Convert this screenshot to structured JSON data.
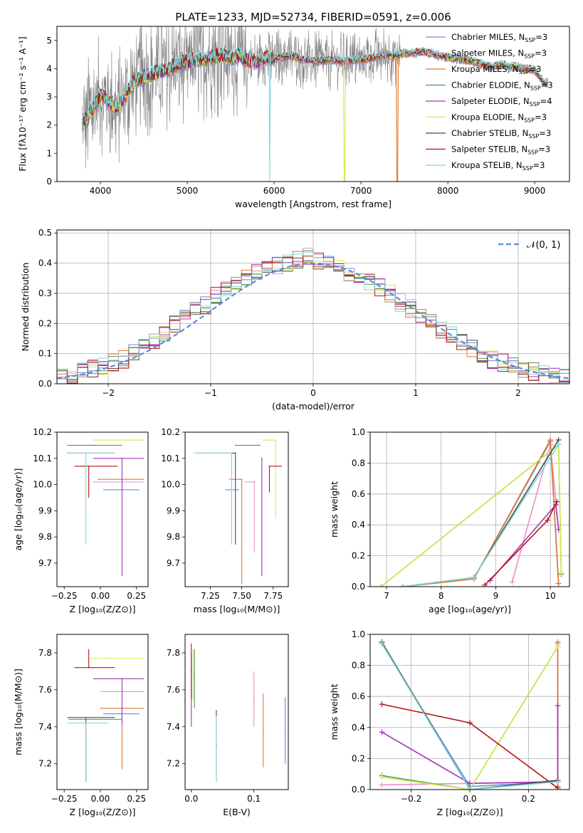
{
  "figure_title": "PLATE=1233, MJD=52734, FIBERID=0591, z=0.006",
  "colors": {
    "Chabrier MILES": "#6a8fd8",
    "Salpeter MILES": "#ea8fc8",
    "Kroupa MILES": "#e0782c",
    "Chabrier ELODIE": "#4f9a4f",
    "Salpeter ELODIE": "#a335b8",
    "Kroupa ELODIE": "#d4ea4a",
    "Chabrier STELIB": "#4a4a4a",
    "Salpeter STELIB": "#b81414",
    "Kroupa STELIB": "#7fd8dc"
  },
  "chart_data": [
    {
      "type": "line",
      "title": "PLATE=1233, MJD=52734, FIBERID=0591, z=0.006",
      "xlabel": "wavelength [Angstrom, rest frame]",
      "ylabel": "Flux [fλ10⁻¹⁷ erg cm⁻² s⁻¹ A⁻¹]",
      "xlim": [
        3500,
        9400
      ],
      "ylim": [
        0,
        5.5
      ],
      "xticks": [
        "4000",
        "5000",
        "6000",
        "7000",
        "8000",
        "9000"
      ],
      "yticks": [
        "0",
        "1",
        "2",
        "3",
        "4",
        "5"
      ],
      "grid": false,
      "legend_placement": "top-right",
      "continuum_x": [
        3790,
        3900,
        4000,
        4100,
        4200,
        4300,
        4400,
        4500,
        4600,
        4700,
        4800,
        4900,
        5000,
        5100,
        5200,
        5300,
        5400,
        5500,
        5600,
        5700,
        5800,
        5900,
        6000,
        6100,
        6200,
        6300,
        6400,
        6500,
        6600,
        6700,
        6800,
        6900,
        7000,
        7100,
        7200,
        7300,
        7400,
        7500,
        7600,
        7700,
        7800,
        7900,
        8000,
        8100,
        8200,
        8300,
        8400,
        8500,
        8600,
        8700,
        8800,
        8900,
        9000,
        9100
      ],
      "continuum_y": [
        2.0,
        2.5,
        3.1,
        2.8,
        2.6,
        3.1,
        3.6,
        3.7,
        3.8,
        3.9,
        4.0,
        4.15,
        4.25,
        4.3,
        4.35,
        4.4,
        4.45,
        4.4,
        4.45,
        4.3,
        4.25,
        4.35,
        4.35,
        4.4,
        4.45,
        4.35,
        4.3,
        4.25,
        4.3,
        4.3,
        4.25,
        4.3,
        4.3,
        4.35,
        4.45,
        4.45,
        4.45,
        4.55,
        4.55,
        4.6,
        4.55,
        4.45,
        4.4,
        4.35,
        4.3,
        4.25,
        4.15,
        4.05,
        4.15,
        4.1,
        4.05,
        4.0,
        3.95,
        3.5
      ],
      "series": [
        {
          "name": "Chabrier MILES, N",
          "sub": "SSP",
          "suffix": "=3"
        },
        {
          "name": "Salpeter MILES, N",
          "sub": "SSP",
          "suffix": "=3"
        },
        {
          "name": "Kroupa MILES, N",
          "sub": "SSP",
          "suffix": "=3"
        },
        {
          "name": "Chabrier ELODIE, N",
          "sub": "SSP",
          "suffix": "=3"
        },
        {
          "name": "Salpeter ELODIE, N",
          "sub": "SSP",
          "suffix": "=4"
        },
        {
          "name": "Kroupa ELODIE, N",
          "sub": "SSP",
          "suffix": "=3"
        },
        {
          "name": "Chabrier STELIB, N",
          "sub": "SSP",
          "suffix": "=3"
        },
        {
          "name": "Salpeter STELIB, N",
          "sub": "SSP",
          "suffix": "=3"
        },
        {
          "name": "Kroupa STELIB, N",
          "sub": "SSP",
          "suffix": "=3"
        }
      ]
    },
    {
      "type": "bar",
      "xlabel": "(data-model)/error",
      "ylabel": "Normed distribution",
      "xlim": [
        -2.5,
        2.5
      ],
      "ylim": [
        0,
        0.51
      ],
      "xticks": [
        "−2",
        "−1",
        "0",
        "1",
        "2"
      ],
      "yticks": [
        "0.0",
        "0.1",
        "0.2",
        "0.3",
        "0.4",
        "0.5"
      ],
      "grid": true,
      "legend_placement": "top-right",
      "legend": "𝒩(0, 1)",
      "bins": [
        -2.5,
        2.5,
        50
      ],
      "base_hist": [
        0.02,
        0.03,
        0.04,
        0.05,
        0.06,
        0.07,
        0.08,
        0.1,
        0.12,
        0.14,
        0.17,
        0.2,
        0.22,
        0.24,
        0.26,
        0.29,
        0.32,
        0.34,
        0.35,
        0.37,
        0.38,
        0.39,
        0.4,
        0.41,
        0.42,
        0.41,
        0.4,
        0.38,
        0.37,
        0.36,
        0.34,
        0.32,
        0.3,
        0.27,
        0.25,
        0.23,
        0.21,
        0.18,
        0.16,
        0.14,
        0.12,
        0.1,
        0.08,
        0.07,
        0.06,
        0.05,
        0.04,
        0.03,
        0.025,
        0.02
      ]
    },
    {
      "type": "scatter",
      "xlabel": "Z [log₁₀(Z/Z⊙)]",
      "ylabel": "age  [log₁₀(age/yr)]",
      "xlim": [
        -0.3,
        0.33
      ],
      "ylim": [
        9.61,
        10.2
      ],
      "xticks": [
        "−0.25",
        "0.00",
        "0.25"
      ],
      "yticks": [
        "9.7",
        "9.8",
        "9.9",
        "10.0",
        "10.1",
        "10.2"
      ],
      "points": [
        {
          "series": "Chabrier MILES",
          "x": 0.15,
          "xerr": [
            0.13,
            0.12
          ],
          "y": 9.98,
          "yerr": [
            0.0,
            0.0
          ]
        },
        {
          "series": "Salpeter MILES",
          "x": 0.15,
          "xerr": [
            0.2,
            0.15
          ],
          "y": 10.01,
          "yerr": [
            0.0,
            0.0
          ]
        },
        {
          "series": "Kroupa MILES",
          "x": 0.15,
          "xerr": [
            0.17,
            0.15
          ],
          "y": 10.02,
          "yerr": [
            0.0,
            0.0
          ]
        },
        {
          "series": "Chabrier ELODIE",
          "x": -0.05,
          "xerr": [
            0.18,
            0.2
          ],
          "y": 10.15,
          "yerr": [
            0.0,
            0.0
          ]
        },
        {
          "series": "Salpeter ELODIE",
          "x": 0.15,
          "xerr": [
            0.2,
            0.15
          ],
          "y": 10.1,
          "yerr": [
            0.45,
            0.0
          ]
        },
        {
          "series": "Kroupa ELODIE",
          "x": 0.05,
          "xerr": [
            0.1,
            0.25
          ],
          "y": 10.17,
          "yerr": [
            0.0,
            0.0
          ]
        },
        {
          "series": "Chabrier STELIB",
          "x": -0.1,
          "xerr": [
            0.13,
            0.2
          ],
          "y": 10.12,
          "yerr": [
            0.0,
            0.0
          ]
        },
        {
          "series": "Salpeter STELIB",
          "x": -0.08,
          "xerr": [
            0.1,
            0.2
          ],
          "y": 10.07,
          "yerr": [
            0.12,
            0.0
          ]
        },
        {
          "series": "Kroupa STELIB",
          "x": -0.1,
          "xerr": [
            0.13,
            0.2
          ],
          "y": 10.12,
          "yerr": [
            0.35,
            0.0
          ]
        }
      ]
    },
    {
      "type": "scatter",
      "xlabel": "mass [log₁₀(M/M⊙)]",
      "ylabel": "",
      "xlim": [
        7.05,
        7.87
      ],
      "ylim": [
        9.61,
        10.2
      ],
      "xticks": [
        "7.25",
        "7.50",
        "7.75"
      ],
      "yticks": [
        "9.7",
        "9.8",
        "9.9",
        "10.0",
        "10.1",
        "10.2"
      ],
      "points": [
        {
          "series": "Chabrier MILES",
          "x": 7.47,
          "xerr": [
            0.1,
            0.0
          ],
          "y": 9.98,
          "yerr": [
            0.0,
            0.0
          ]
        },
        {
          "series": "Salpeter MILES",
          "x": 7.6,
          "xerr": [
            0.08,
            0.0
          ],
          "y": 10.01,
          "yerr": [
            0.27,
            0.0
          ]
        },
        {
          "series": "Kroupa MILES",
          "x": 7.5,
          "xerr": [
            0.1,
            0.0
          ],
          "y": 10.02,
          "yerr": [
            0.4,
            0.0
          ]
        },
        {
          "series": "Chabrier ELODIE",
          "x": 7.45,
          "xerr": [
            0.0,
            0.2
          ],
          "y": 10.15,
          "yerr": [
            0.0,
            0.0
          ]
        },
        {
          "series": "Salpeter ELODIE",
          "x": 7.66,
          "xerr": [
            0.0,
            0.0
          ],
          "y": 10.1,
          "yerr": [
            0.45,
            0.0
          ]
        },
        {
          "series": "Kroupa ELODIE",
          "x": 7.77,
          "xerr": [
            0.1,
            0.0
          ],
          "y": 10.17,
          "yerr": [
            0.3,
            0.0
          ]
        },
        {
          "series": "Chabrier STELIB",
          "x": 7.45,
          "xerr": [
            0.3,
            0.0
          ],
          "y": 10.12,
          "yerr": [
            0.35,
            0.0
          ]
        },
        {
          "series": "Salpeter STELIB",
          "x": 7.72,
          "xerr": [
            0.0,
            0.1
          ],
          "y": 10.07,
          "yerr": [
            0.1,
            0.0
          ]
        },
        {
          "series": "Kroupa STELIB",
          "x": 7.42,
          "xerr": [
            0.3,
            0.0
          ],
          "y": 10.12,
          "yerr": [
            0.35,
            0.0
          ]
        }
      ]
    },
    {
      "type": "line",
      "xlabel": "age  [log₁₀(age/yr)]",
      "ylabel": "mass weight",
      "xlim": [
        6.7,
        10.35
      ],
      "ylim": [
        0,
        1.0
      ],
      "xticks": [
        "7",
        "8",
        "9",
        "10"
      ],
      "yticks": [
        "0.0",
        "0.2",
        "0.4",
        "0.6",
        "0.8",
        "1.0"
      ],
      "grid": true,
      "series": [
        {
          "name": "Chabrier MILES",
          "x": [
            7.3,
            8.6,
            10.0,
            10.15
          ],
          "y": [
            0.0,
            0.05,
            0.94,
            0.02
          ]
        },
        {
          "name": "Salpeter MILES",
          "x": [
            9.3,
            10.0,
            10.15
          ],
          "y": [
            0.03,
            0.92,
            0.37
          ]
        },
        {
          "name": "Kroupa MILES",
          "x": [
            7.3,
            8.6,
            10.0,
            10.15
          ],
          "y": [
            0.0,
            0.05,
            0.95,
            0.02
          ]
        },
        {
          "name": "Chabrier ELODIE",
          "x": [
            6.9,
            10.15,
            10.2
          ],
          "y": [
            0.0,
            0.92,
            0.08
          ]
        },
        {
          "name": "Salpeter ELODIE",
          "x": [
            8.9,
            10.1,
            10.15
          ],
          "y": [
            0.04,
            0.53,
            0.37
          ]
        },
        {
          "name": "Kroupa ELODIE",
          "x": [
            6.9,
            10.15,
            10.2
          ],
          "y": [
            0.0,
            0.92,
            0.09
          ]
        },
        {
          "name": "Chabrier STELIB",
          "x": [
            7.3,
            8.6,
            10.15
          ],
          "y": [
            0.0,
            0.06,
            0.95
          ]
        },
        {
          "name": "Salpeter STELIB",
          "x": [
            8.8,
            9.95,
            10.12
          ],
          "y": [
            0.01,
            0.43,
            0.55
          ]
        },
        {
          "name": "Kroupa STELIB",
          "x": [
            7.3,
            8.6,
            10.15
          ],
          "y": [
            0.0,
            0.06,
            0.92
          ]
        }
      ]
    },
    {
      "type": "scatter",
      "xlabel": "Z [log₁₀(Z/Z⊙)]",
      "ylabel": "mass [log₁₀(M/M⊙)]",
      "xlim": [
        -0.3,
        0.33
      ],
      "ylim": [
        7.06,
        7.9
      ],
      "xticks": [
        "−0.25",
        "0.00",
        "0.25"
      ],
      "yticks": [
        "7.2",
        "7.4",
        "7.6",
        "7.8"
      ],
      "points": [
        {
          "series": "Chabrier MILES",
          "x": 0.15,
          "xerr": [
            0.13,
            0.12
          ],
          "y": 7.47,
          "yerr": [
            0.0,
            0.0
          ]
        },
        {
          "series": "Salpeter MILES",
          "x": 0.15,
          "xerr": [
            0.15,
            0.15
          ],
          "y": 7.59,
          "yerr": [
            0.0,
            0.0
          ]
        },
        {
          "series": "Kroupa MILES",
          "x": 0.15,
          "xerr": [
            0.15,
            0.15
          ],
          "y": 7.5,
          "yerr": [
            0.33,
            0.0
          ]
        },
        {
          "series": "Chabrier ELODIE",
          "x": -0.05,
          "xerr": [
            0.17,
            0.2
          ],
          "y": 7.44,
          "yerr": [
            0.0,
            0.0
          ]
        },
        {
          "series": "Salpeter ELODIE",
          "x": 0.15,
          "xerr": [
            0.2,
            0.15
          ],
          "y": 7.66,
          "yerr": [
            0.25,
            0.0
          ]
        },
        {
          "series": "Kroupa ELODIE",
          "x": 0.05,
          "xerr": [
            0.12,
            0.25
          ],
          "y": 7.77,
          "yerr": [
            0.0,
            0.0
          ]
        },
        {
          "series": "Chabrier STELIB",
          "x": -0.1,
          "xerr": [
            0.13,
            0.2
          ],
          "y": 7.45,
          "yerr": [
            0.35,
            0.0
          ]
        },
        {
          "series": "Salpeter STELIB",
          "x": -0.08,
          "xerr": [
            0.1,
            0.18
          ],
          "y": 7.72,
          "yerr": [
            0.0,
            0.1
          ]
        },
        {
          "series": "Kroupa STELIB",
          "x": -0.1,
          "xerr": [
            0.13,
            0.15
          ],
          "y": 7.42,
          "yerr": [
            0.32,
            0.0
          ]
        }
      ]
    },
    {
      "type": "scatter",
      "xlabel": "E(B-V)",
      "ylabel": "",
      "xlim": [
        -0.01,
        0.155
      ],
      "ylim": [
        7.06,
        7.9
      ],
      "xticks": [
        "0.0",
        "0.1"
      ],
      "yticks": [
        "7.2",
        "7.4",
        "7.6",
        "7.8"
      ],
      "points": [
        {
          "series": "Chabrier MILES",
          "x": 0.15,
          "y": 7.38,
          "yerr": [
            0.18,
            0.18
          ]
        },
        {
          "series": "Salpeter MILES",
          "x": 0.1,
          "y": 7.55,
          "yerr": [
            0.15,
            0.15
          ]
        },
        {
          "series": "Kroupa MILES",
          "x": 0.115,
          "y": 7.38,
          "yerr": [
            0.2,
            0.2
          ]
        },
        {
          "series": "Chabrier ELODIE",
          "x": 0.005,
          "y": 7.66,
          "yerr": [
            0.16,
            0.16
          ]
        },
        {
          "series": "Salpeter ELODIE",
          "x": 0.0,
          "y": 7.6,
          "yerr": [
            0.2,
            0.2
          ]
        },
        {
          "series": "Kroupa ELODIE",
          "x": 0.003,
          "y": 7.68,
          "yerr": [
            0.14,
            0.14
          ]
        },
        {
          "series": "Chabrier STELIB",
          "x": 0.04,
          "y": 7.3,
          "yerr": [
            0.19,
            0.19
          ]
        },
        {
          "series": "Salpeter STELIB",
          "x": 0.0,
          "y": 7.7,
          "yerr": [
            0.15,
            0.15
          ]
        },
        {
          "series": "Kroupa STELIB",
          "x": 0.04,
          "y": 7.28,
          "yerr": [
            0.18,
            0.18
          ]
        }
      ]
    },
    {
      "type": "line",
      "xlabel": "Z [log₁₀(Z/Z⊙)]",
      "ylabel": "mass weight",
      "xlim": [
        -0.34,
        0.34
      ],
      "ylim": [
        0,
        1.0
      ],
      "xticks": [
        "−0.2",
        "0.0",
        "0.2"
      ],
      "yticks": [
        "0.0",
        "0.2",
        "0.4",
        "0.6",
        "0.8",
        "1.0"
      ],
      "grid": true,
      "series": [
        {
          "name": "Chabrier MILES",
          "x": [
            -0.3,
            0.0,
            0.3,
            0.3
          ],
          "y": [
            0.94,
            0.02,
            0.05,
            0.94
          ]
        },
        {
          "name": "Salpeter MILES",
          "x": [
            -0.3,
            0.0,
            0.3,
            0.3
          ],
          "y": [
            0.03,
            0.04,
            0.05,
            0.94
          ]
        },
        {
          "name": "Kroupa MILES",
          "x": [
            0.3,
            0.3
          ],
          "y": [
            0.02,
            0.95
          ]
        },
        {
          "name": "Chabrier ELODIE",
          "x": [
            -0.3,
            0.0,
            0.3
          ],
          "y": [
            0.09,
            0.0,
            0.92
          ]
        },
        {
          "name": "Salpeter ELODIE",
          "x": [
            -0.3,
            0.0,
            0.3,
            0.3
          ],
          "y": [
            0.37,
            0.04,
            0.05,
            0.54
          ]
        },
        {
          "name": "Kroupa ELODIE",
          "x": [
            -0.3,
            0.0,
            0.3
          ],
          "y": [
            0.08,
            0.0,
            0.92
          ]
        },
        {
          "name": "Chabrier STELIB",
          "x": [
            -0.3,
            0.0,
            0.3
          ],
          "y": [
            0.95,
            0.0,
            0.06
          ]
        },
        {
          "name": "Salpeter STELIB",
          "x": [
            -0.3,
            0.0,
            0.3
          ],
          "y": [
            0.55,
            0.43,
            0.01
          ]
        },
        {
          "name": "Kroupa STELIB",
          "x": [
            -0.3,
            0.0,
            0.3
          ],
          "y": [
            0.94,
            0.0,
            0.05
          ]
        }
      ]
    }
  ]
}
